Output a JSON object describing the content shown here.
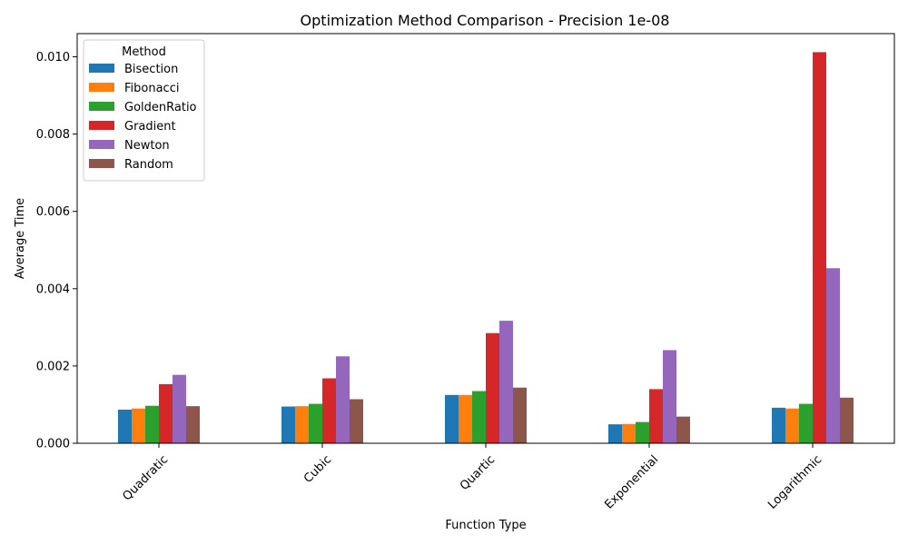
{
  "chart_data": {
    "type": "bar",
    "title": "Optimization Method Comparison - Precision 1e-08",
    "xlabel": "Function Type",
    "ylabel": "Average Time",
    "categories": [
      "Quadratic",
      "Cubic",
      "Quartic",
      "Exponential",
      "Logarithmic"
    ],
    "ylim": [
      0,
      0.0106
    ],
    "yticks": [
      "0.000",
      "0.002",
      "0.004",
      "0.006",
      "0.008",
      "0.010"
    ],
    "ytick_values": [
      0,
      0.002,
      0.004,
      0.006,
      0.008,
      0.01
    ],
    "grid": false,
    "legend": {
      "title": "Method",
      "placement": "top-left"
    },
    "series": [
      {
        "name": "Bisection",
        "color": "#1f77b4",
        "values": [
          0.00087,
          0.00095,
          0.00125,
          0.00049,
          0.00092
        ]
      },
      {
        "name": "Fibonacci",
        "color": "#ff7f0e",
        "values": [
          0.0009,
          0.00096,
          0.00125,
          0.0005,
          0.0009
        ]
      },
      {
        "name": "GoldenRatio",
        "color": "#2ca02c",
        "values": [
          0.00097,
          0.00102,
          0.00135,
          0.00055,
          0.00102
        ]
      },
      {
        "name": "Gradient",
        "color": "#d62728",
        "values": [
          0.00153,
          0.00168,
          0.00285,
          0.0014,
          0.01012
        ]
      },
      {
        "name": "Newton",
        "color": "#9467bd",
        "values": [
          0.00177,
          0.00225,
          0.00317,
          0.00241,
          0.00453
        ]
      },
      {
        "name": "Random",
        "color": "#8c564b",
        "values": [
          0.00096,
          0.00114,
          0.00144,
          0.00069,
          0.00118
        ]
      }
    ]
  }
}
